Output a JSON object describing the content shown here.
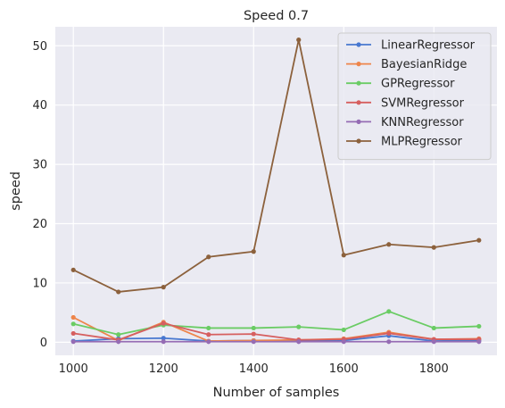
{
  "chart_data": {
    "type": "line",
    "title": "Speed 0.7",
    "xlabel": "Number of samples",
    "ylabel": "speed",
    "x": [
      1000,
      1100,
      1200,
      1300,
      1400,
      1500,
      1600,
      1700,
      1800,
      1900
    ],
    "xlim": [
      960,
      1940
    ],
    "ylim": [
      -2.2,
      53.2
    ],
    "xticks": [
      1000,
      1200,
      1400,
      1600,
      1800
    ],
    "yticks": [
      0,
      10,
      20,
      30,
      40,
      50
    ],
    "grid": true,
    "legend_position": "top-right",
    "series": [
      {
        "name": "LinearRegressor",
        "color": "#4878d0",
        "values": [
          0.2,
          0.6,
          0.7,
          0.2,
          0.3,
          0.2,
          0.3,
          1.1,
          0.2,
          0.3
        ]
      },
      {
        "name": "BayesianRidge",
        "color": "#ee854a",
        "values": [
          4.2,
          0.3,
          3.4,
          0.2,
          0.3,
          0.4,
          0.6,
          1.7,
          0.5,
          0.6
        ]
      },
      {
        "name": "GPRegressor",
        "color": "#6acc64",
        "values": [
          3.1,
          1.3,
          2.9,
          2.4,
          2.4,
          2.6,
          2.1,
          5.2,
          2.4,
          2.7
        ]
      },
      {
        "name": "SVMRegressor",
        "color": "#d65f5f",
        "values": [
          1.5,
          0.4,
          3.2,
          1.3,
          1.4,
          0.4,
          0.5,
          1.5,
          0.5,
          0.5
        ]
      },
      {
        "name": "KNNRegressor",
        "color": "#956cb4",
        "values": [
          0.1,
          0.1,
          0.1,
          0.1,
          0.1,
          0.1,
          0.1,
          0.1,
          0.1,
          0.1
        ]
      },
      {
        "name": "MLPRegressor",
        "color": "#8c613c",
        "values": [
          12.2,
          8.5,
          9.3,
          14.4,
          15.3,
          51.0,
          14.7,
          16.5,
          16.0,
          17.2
        ]
      }
    ]
  }
}
